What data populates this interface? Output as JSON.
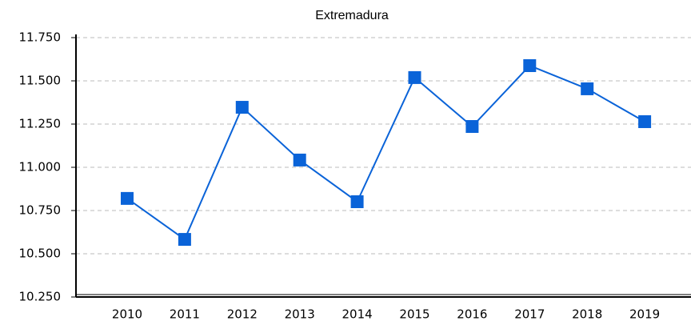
{
  "chart_data": {
    "type": "line",
    "title": "Extremadura",
    "categories": [
      "2010",
      "2011",
      "2012",
      "2013",
      "2014",
      "2015",
      "2016",
      "2017",
      "2018",
      "2019"
    ],
    "series": [
      {
        "name": "Extremadura",
        "color": "#0a63d8",
        "values": [
          10820,
          10583,
          11347,
          11042,
          10801,
          11519,
          11236,
          11588,
          11454,
          11264
        ]
      }
    ],
    "ylim": [
      10250,
      11750
    ],
    "yticks": [
      {
        "value": 10250,
        "label": "10.250"
      },
      {
        "value": 10500,
        "label": "10.500"
      },
      {
        "value": 10750,
        "label": "10.750"
      },
      {
        "value": 11000,
        "label": "11.000"
      },
      {
        "value": 11250,
        "label": "11.250"
      },
      {
        "value": 11500,
        "label": "11.500"
      },
      {
        "value": 11750,
        "label": "11.750"
      }
    ],
    "grid": true
  }
}
